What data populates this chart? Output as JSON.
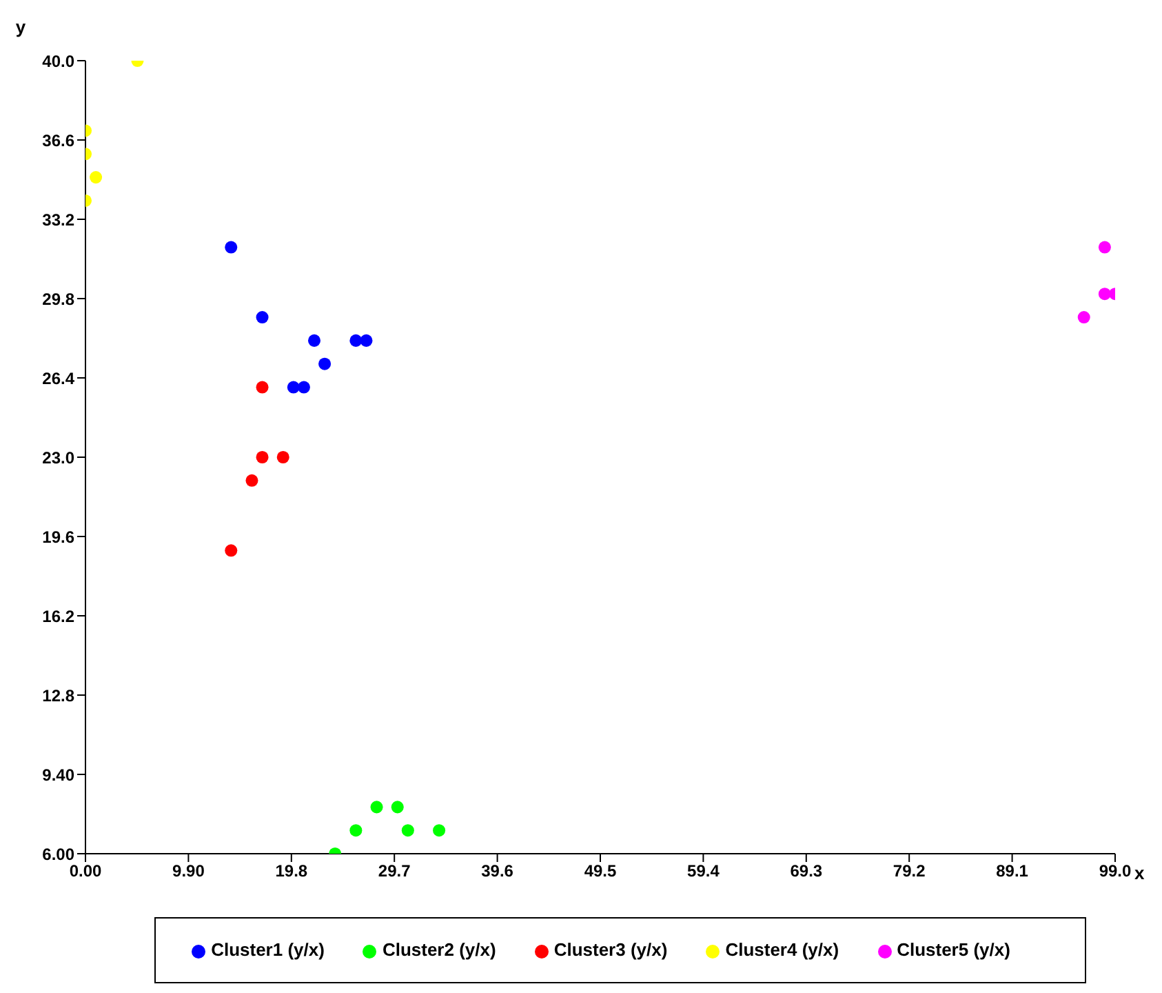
{
  "chart_data": {
    "type": "scatter",
    "xlabel": "x",
    "ylabel": "y",
    "xlim": [
      0,
      99
    ],
    "ylim": [
      6,
      40
    ],
    "xticks": [
      {
        "value": 0,
        "label": "0.00"
      },
      {
        "value": 9.9,
        "label": "9.90"
      },
      19.8,
      29.7,
      39.6,
      49.5,
      59.4,
      69.3,
      79.2,
      89.1,
      {
        "value": 99,
        "label": "99.0"
      }
    ],
    "yticks": [
      {
        "value": 6,
        "label": "6.00"
      },
      {
        "value": 9.4,
        "label": "9.40"
      },
      12.8,
      16.2,
      19.6,
      {
        "value": 23,
        "label": "23.0"
      },
      26.4,
      29.8,
      33.2,
      36.6,
      {
        "value": 40,
        "label": "40.0"
      }
    ],
    "marker": "circle",
    "legend": "bottom",
    "grid": false,
    "series": [
      {
        "name": "Cluster1 (y/x)",
        "color": "#0000ff",
        "x": [
          14,
          17,
          22,
          26,
          27,
          23,
          20,
          21
        ],
        "values": [
          32,
          29,
          28,
          28,
          28,
          27,
          26,
          26
        ]
      },
      {
        "name": "Cluster2 (y/x)",
        "color": "#00ff00",
        "x": [
          24,
          26,
          28,
          30,
          31,
          34
        ],
        "values": [
          6,
          7,
          8,
          8,
          7,
          7
        ]
      },
      {
        "name": "Cluster3 (y/x)",
        "color": "#ff0000",
        "x": [
          17,
          17,
          19,
          16,
          14
        ],
        "values": [
          26,
          23,
          23,
          22,
          19
        ]
      },
      {
        "name": "Cluster4 (y/x)",
        "color": "#ffff00",
        "x": [
          5,
          0,
          0,
          1,
          0
        ],
        "values": [
          40,
          37,
          36,
          35,
          34
        ]
      },
      {
        "name": "Cluster5 (y/x)",
        "color": "#ff00ff",
        "x": [
          98,
          98,
          99,
          96
        ],
        "values": [
          32,
          30,
          30,
          29
        ]
      }
    ]
  }
}
